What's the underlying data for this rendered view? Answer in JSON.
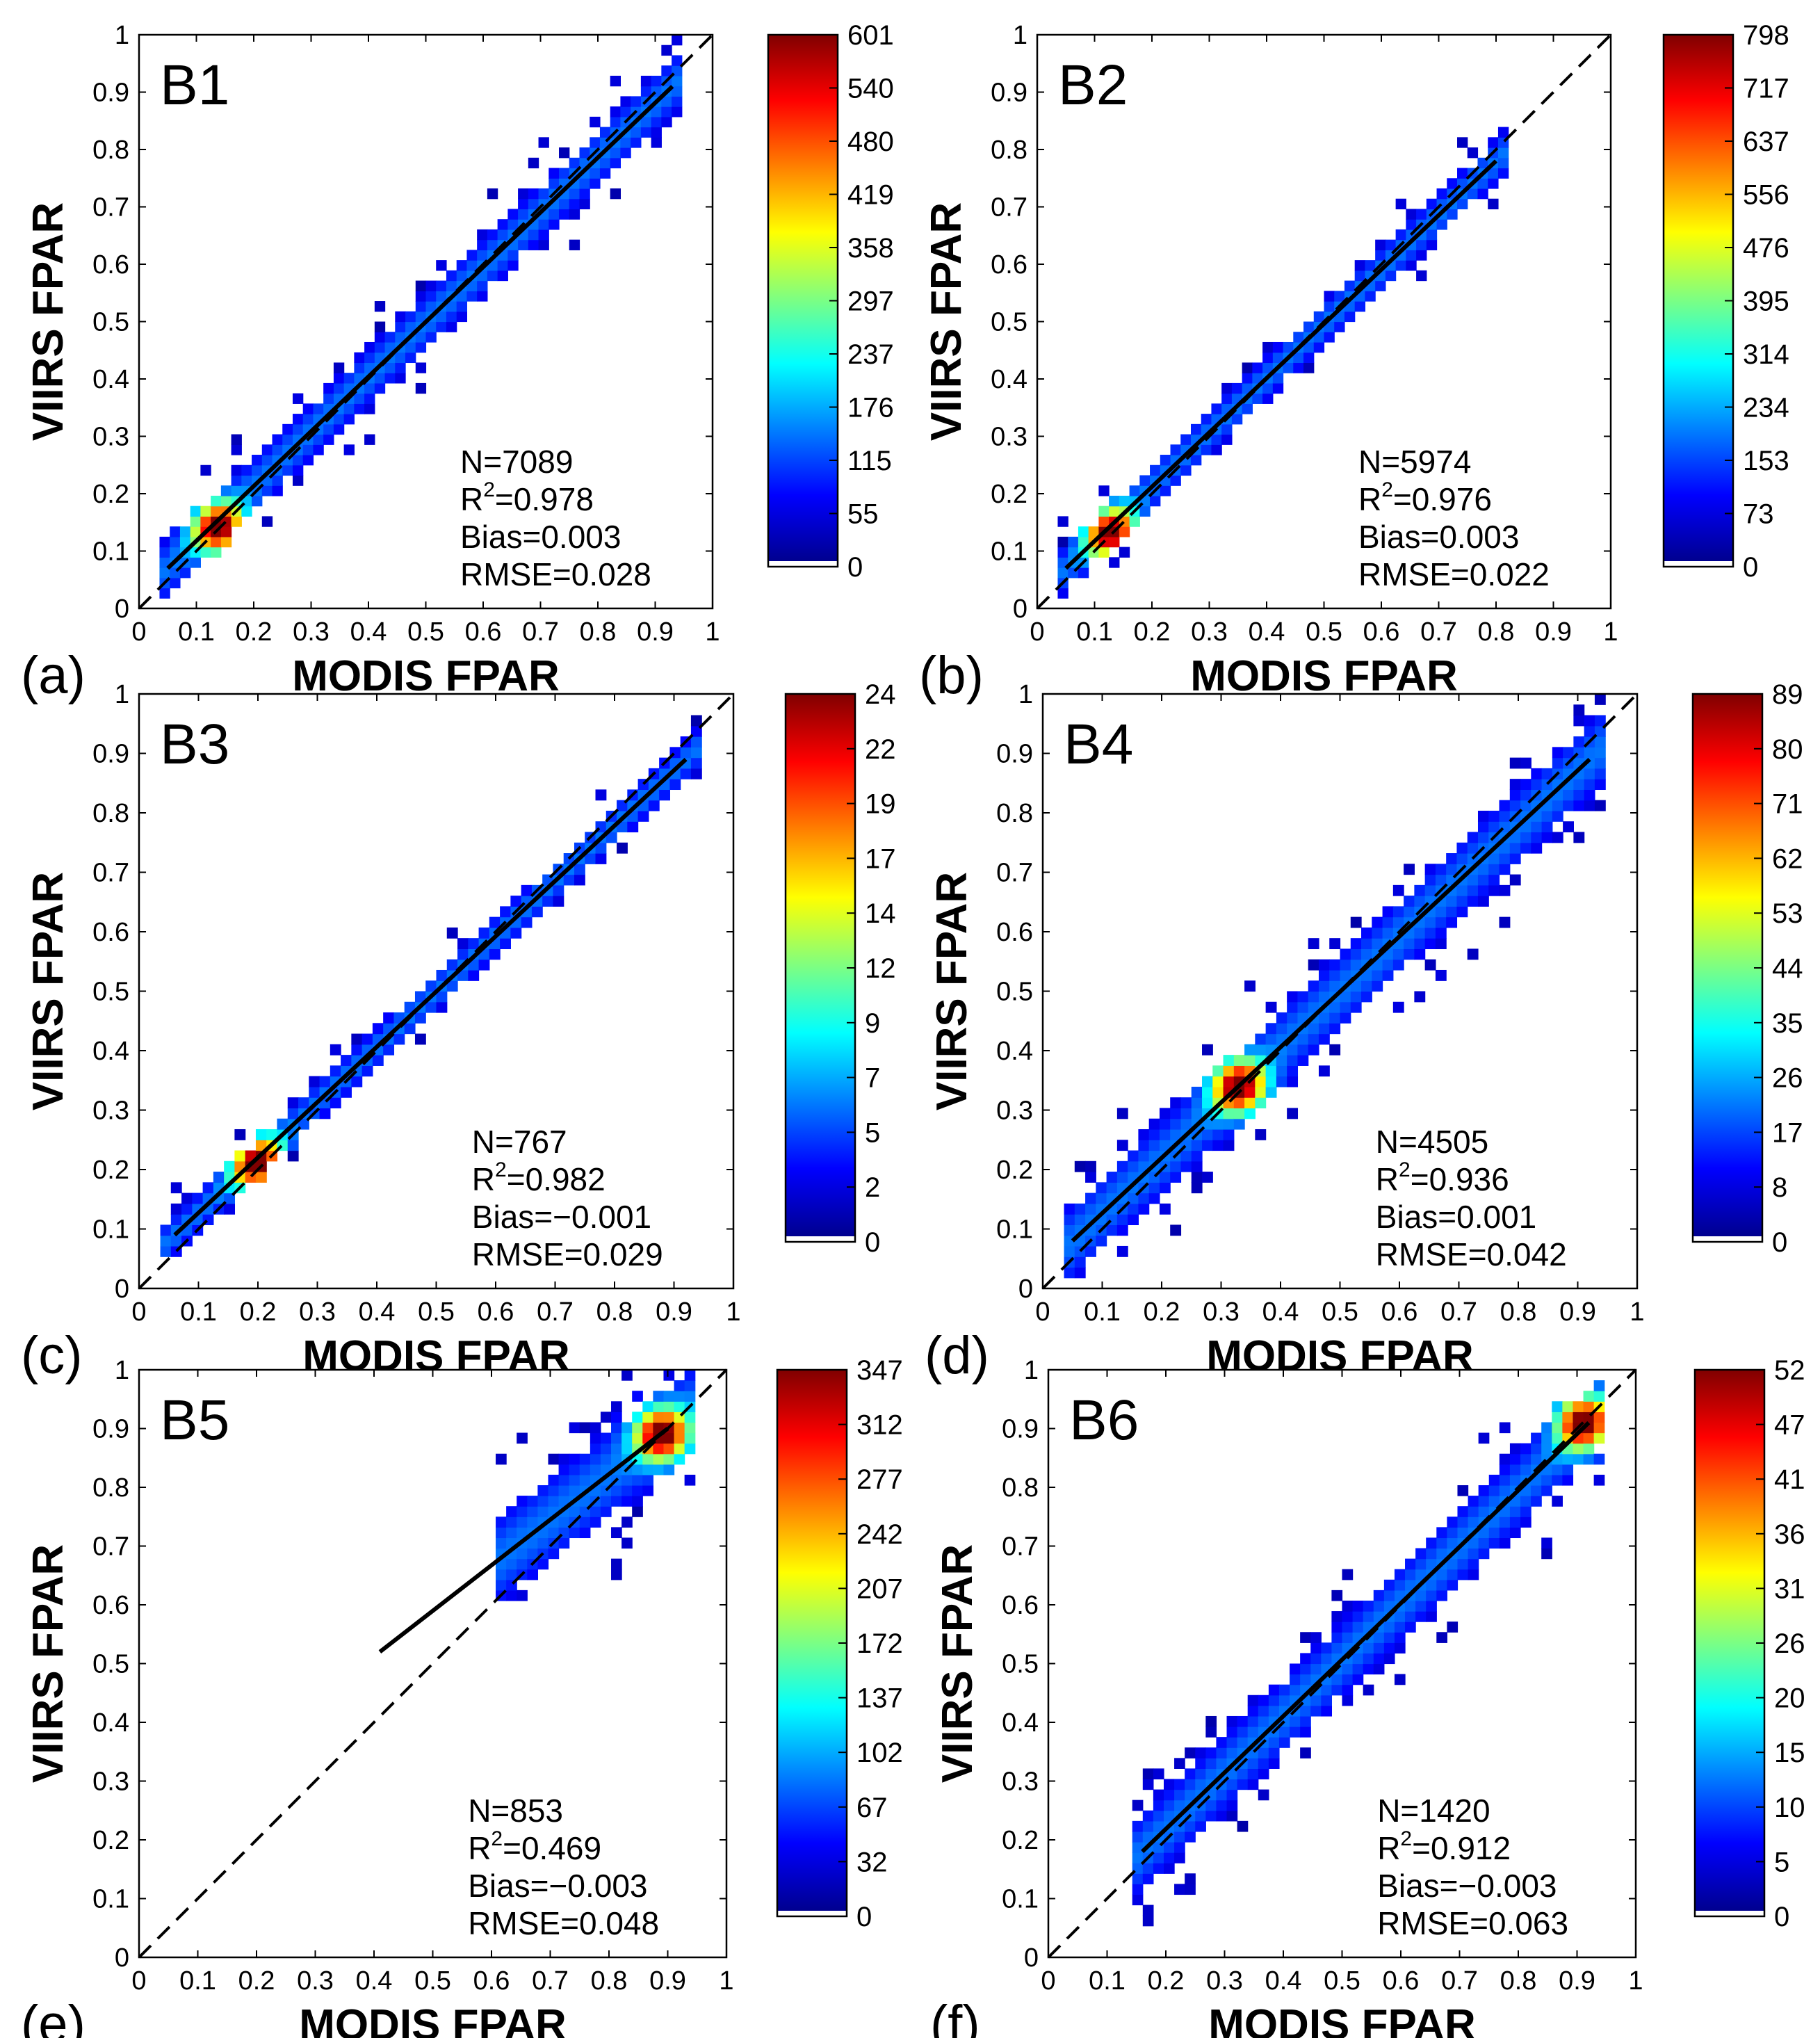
{
  "figure": {
    "axis_label_x": "MODIS FPAR",
    "axis_label_y": "VIIRS FPAR",
    "tick_labels": [
      "0",
      "0.1",
      "0.2",
      "0.3",
      "0.4",
      "0.5",
      "0.6",
      "0.7",
      "0.8",
      "0.9",
      "1"
    ]
  },
  "chart_data": [
    {
      "type": "heatmap",
      "panel_letter": "(a)",
      "title": "B1",
      "xlabel": "MODIS FPAR",
      "ylabel": "VIIRS FPAR",
      "xlim": [
        0,
        1
      ],
      "ylim": [
        0,
        1
      ],
      "colorbar_ticks": [
        "0",
        "55",
        "115",
        "176",
        "237",
        "297",
        "358",
        "419",
        "480",
        "540",
        "601"
      ],
      "colorbar_max": 601,
      "stats": {
        "n": "N=7089",
        "r2_prefix": "R",
        "r2_sup": "2",
        "r2_value": "=0.978",
        "bias": "Bias=0.003",
        "rmse": "RMSE=0.028"
      },
      "fit_line": {
        "x": [
          0.05,
          0.93
        ],
        "y": [
          0.07,
          0.91
        ]
      },
      "one_to_one": true,
      "density": {
        "x_range": [
          0.05,
          0.93
        ],
        "spread": 0.045,
        "hotspot": [
          0.14,
          0.14
        ],
        "peak_at_low_end": true
      }
    },
    {
      "type": "heatmap",
      "panel_letter": "(b)",
      "title": "B2",
      "xlabel": "MODIS FPAR",
      "ylabel": "VIIRS FPAR",
      "xlim": [
        0,
        1
      ],
      "ylim": [
        0,
        1
      ],
      "colorbar_ticks": [
        "0",
        "73",
        "153",
        "234",
        "314",
        "395",
        "476",
        "556",
        "637",
        "717",
        "798"
      ],
      "colorbar_max": 798,
      "stats": {
        "n": "N=5974",
        "r2_prefix": "R",
        "r2_sup": "2",
        "r2_value": "=0.976",
        "bias": "Bias=0.003",
        "rmse": "RMSE=0.022"
      },
      "fit_line": {
        "x": [
          0.05,
          0.8
        ],
        "y": [
          0.07,
          0.78
        ]
      },
      "one_to_one": true,
      "density": {
        "x_range": [
          0.05,
          0.8
        ],
        "spread": 0.035,
        "hotspot": [
          0.13,
          0.13
        ],
        "peak_at_low_end": true
      }
    },
    {
      "type": "heatmap",
      "panel_letter": "(c)",
      "title": "B3",
      "xlabel": "MODIS FPAR",
      "ylabel": "VIIRS FPAR",
      "xlim": [
        0,
        1
      ],
      "ylim": [
        0,
        1
      ],
      "colorbar_ticks": [
        "0",
        "2",
        "5",
        "7",
        "9",
        "12",
        "14",
        "17",
        "19",
        "22",
        "24"
      ],
      "colorbar_max": 24,
      "stats": {
        "n": "N=767",
        "r2_prefix": "R",
        "r2_sup": "2",
        "r2_value": "=0.982",
        "bias": "Bias=−0.001",
        "rmse": "RMSE=0.029"
      },
      "fit_line": {
        "x": [
          0.06,
          0.92
        ],
        "y": [
          0.09,
          0.89
        ]
      },
      "one_to_one": true,
      "density": {
        "x_range": [
          0.06,
          0.92
        ],
        "spread": 0.03,
        "hotspot": [
          0.2,
          0.21
        ],
        "peak_at_low_end": false
      }
    },
    {
      "type": "heatmap",
      "panel_letter": "(d)",
      "title": "B4",
      "xlabel": "MODIS FPAR",
      "ylabel": "VIIRS FPAR",
      "xlim": [
        0,
        1
      ],
      "ylim": [
        0,
        1
      ],
      "colorbar_ticks": [
        "0",
        "8",
        "17",
        "26",
        "35",
        "44",
        "53",
        "62",
        "71",
        "80",
        "89"
      ],
      "colorbar_max": 89,
      "stats": {
        "n": "N=4505",
        "r2_prefix": "R",
        "r2_sup": "2",
        "r2_value": "=0.936",
        "bias": "Bias=0.001",
        "rmse": "RMSE=0.042"
      },
      "fit_line": {
        "x": [
          0.05,
          0.92
        ],
        "y": [
          0.08,
          0.89
        ]
      },
      "one_to_one": true,
      "density": {
        "x_range": [
          0.05,
          0.92
        ],
        "spread": 0.06,
        "hotspot": [
          0.33,
          0.34
        ],
        "peak_at_low_end": false
      }
    },
    {
      "type": "heatmap",
      "panel_letter": "(e)",
      "title": "B5",
      "xlabel": "MODIS FPAR",
      "ylabel": "VIIRS FPAR",
      "xlim": [
        0,
        1
      ],
      "ylim": [
        0,
        1
      ],
      "colorbar_ticks": [
        "0",
        "32",
        "67",
        "102",
        "137",
        "172",
        "207",
        "242",
        "277",
        "312",
        "347"
      ],
      "colorbar_max": 347,
      "stats": {
        "n": "N=853",
        "r2_prefix": "R",
        "r2_sup": "2",
        "r2_value": "=0.469",
        "bias": "Bias=−0.003",
        "rmse": "RMSE=0.048"
      },
      "fit_line": {
        "x": [
          0.41,
          0.9
        ],
        "y": [
          0.52,
          0.9
        ]
      },
      "one_to_one": true,
      "density": {
        "x_range": [
          0.62,
          0.92
        ],
        "spread": 0.07,
        "hotspot": [
          0.89,
          0.89
        ],
        "peak_at_low_end": false
      }
    },
    {
      "type": "heatmap",
      "panel_letter": "(f)",
      "title": "B6",
      "xlabel": "MODIS FPAR",
      "ylabel": "VIIRS FPAR",
      "xlim": [
        0,
        1
      ],
      "ylim": [
        0,
        1
      ],
      "colorbar_ticks": [
        "0",
        "5",
        "10",
        "15",
        "20",
        "26",
        "31",
        "36",
        "41",
        "47",
        "52"
      ],
      "colorbar_max": 52,
      "stats": {
        "n": "N=1420",
        "r2_prefix": "R",
        "r2_sup": "2",
        "r2_value": "=0.912",
        "bias": "Bias=−0.003",
        "rmse": "RMSE=0.063"
      },
      "fit_line": {
        "x": [
          0.16,
          0.92
        ],
        "y": [
          0.18,
          0.91
        ]
      },
      "one_to_one": true,
      "density": {
        "x_range": [
          0.16,
          0.93
        ],
        "spread": 0.06,
        "hotspot": [
          0.91,
          0.91
        ],
        "peak_at_low_end": false
      }
    }
  ]
}
